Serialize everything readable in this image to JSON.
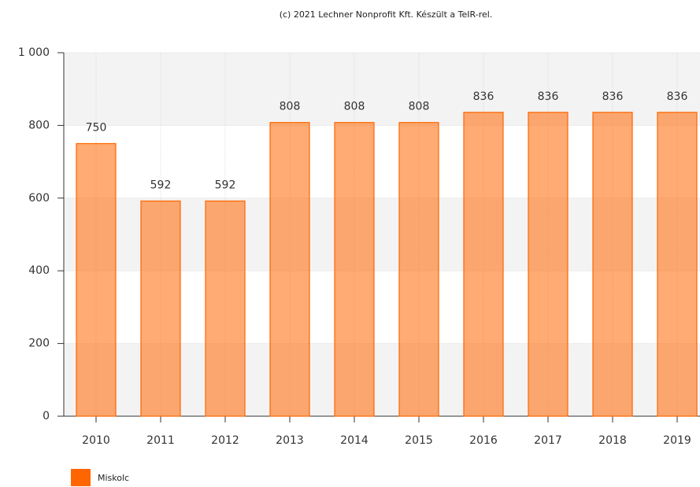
{
  "chart_data": {
    "type": "bar",
    "subtitle": "(c) 2021 Lechner Nonprofit Kft. Készült a TeIR-rel.",
    "categories": [
      "2010",
      "2011",
      "2012",
      "2013",
      "2014",
      "2015",
      "2016",
      "2017",
      "2018",
      "2019"
    ],
    "series": [
      {
        "name": "Miskolc",
        "color": "#ff6600",
        "values": [
          750,
          592,
          592,
          808,
          808,
          808,
          836,
          836,
          836,
          836
        ]
      }
    ],
    "ylim": [
      0,
      1000
    ],
    "yticks": [
      0,
      200,
      400,
      600,
      800,
      {
        "value": 1000,
        "label": "1 000"
      }
    ],
    "grid": true,
    "legend": "bottom-left"
  }
}
